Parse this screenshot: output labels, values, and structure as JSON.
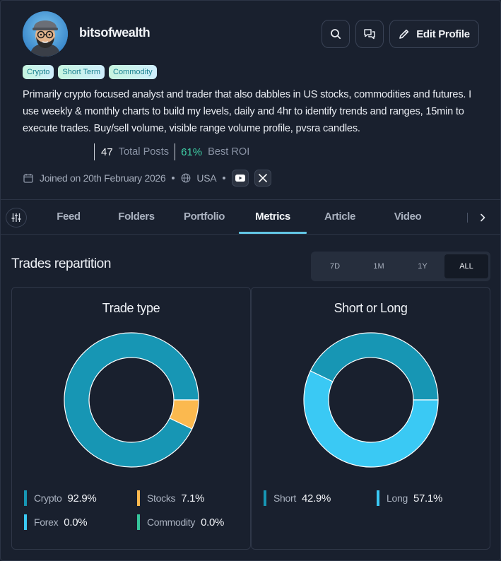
{
  "profile": {
    "username": "bitsofwealth",
    "tags": [
      "Crypto",
      "Short Term",
      "Commodity"
    ],
    "bio": "Primarily crypto focused analyst and trader that also dabbles in US stocks, commodities and futures. I use weekly & monthly charts to build my levels, daily and 4hr to identify trends and ranges, 15min to execute trades. Buy/sell volume, visible range volume profile, pvsra candles.",
    "total_posts_value": "47",
    "total_posts_label": "Total Posts",
    "best_roi_value": "61%",
    "best_roi_label": "Best ROI",
    "joined": "Joined on 20th February 2026",
    "country": "USA",
    "edit_label": "Edit Profile"
  },
  "tabs": [
    {
      "label": "Feed"
    },
    {
      "label": "Folders"
    },
    {
      "label": "Portfolio"
    },
    {
      "label": "Metrics",
      "active": true
    },
    {
      "label": "Article"
    },
    {
      "label": "Video"
    }
  ],
  "section": {
    "title": "Trades repartition",
    "ranges": [
      "7D",
      "1M",
      "1Y",
      "ALL"
    ],
    "active_range": "ALL"
  },
  "chart_data": [
    {
      "type": "pie",
      "title": "Trade type",
      "slices": [
        {
          "label": "Crypto",
          "value": 92.9,
          "display": "92.9%",
          "color": "#1796b4"
        },
        {
          "label": "Stocks",
          "value": 7.1,
          "display": "7.1%",
          "color": "#fbb94f"
        },
        {
          "label": "Forex",
          "value": 0.0,
          "display": "0.0%",
          "color": "#3ac9f4"
        },
        {
          "label": "Commodity",
          "value": 0.0,
          "display": "0.0%",
          "color": "#36c59c"
        }
      ]
    },
    {
      "type": "pie",
      "title": "Short or Long",
      "slices": [
        {
          "label": "Short",
          "value": 42.9,
          "display": "42.9%",
          "color": "#1796b4"
        },
        {
          "label": "Long",
          "value": 57.1,
          "display": "57.1%",
          "color": "#3ac9f4"
        }
      ]
    }
  ],
  "colors": {
    "accent": "#62c6e4",
    "roi": "#3fcfa6",
    "background": "#19202e"
  },
  "icons": {
    "search": "search-icon",
    "messages": "chat-icon",
    "edit": "pencil-icon",
    "calendar": "calendar-icon",
    "globe": "globe-icon",
    "youtube": "youtube-icon",
    "x": "x-icon",
    "filter": "sliders-icon",
    "next": "chevron-right-icon"
  }
}
